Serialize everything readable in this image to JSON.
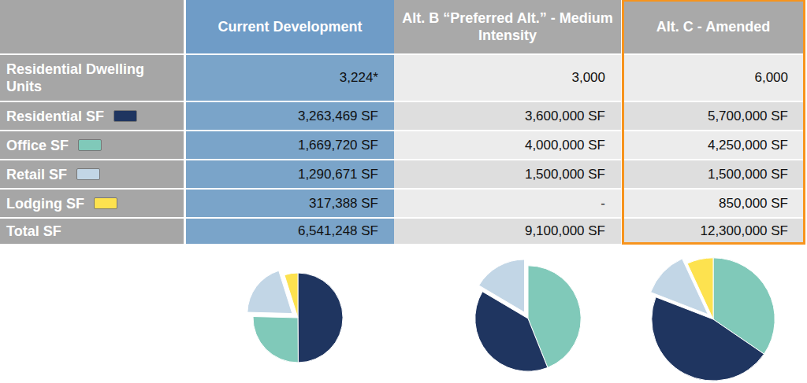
{
  "table": {
    "columns": [
      "Current Development",
      "Alt. B “Preferred Alt.” - Medium Intensity",
      "Alt. C - Amended"
    ],
    "rows": [
      {
        "label": "Residential Dwelling Units",
        "values": [
          "3,224*",
          "3,000",
          "6,000"
        ]
      },
      {
        "label": "Residential SF",
        "color": "#1f3560",
        "values": [
          "3,263,469 SF",
          "3,600,000 SF",
          "5,700,000 SF"
        ]
      },
      {
        "label": "Office SF",
        "color": "#80c9b9",
        "values": [
          "1,669,720 SF",
          "4,000,000 SF",
          "4,250,000 SF"
        ]
      },
      {
        "label": "Retail SF",
        "color": "#c2d6e6",
        "values": [
          "1,290,671 SF",
          "1,500,000 SF",
          "1,500,000 SF"
        ]
      },
      {
        "label": "Lodging SF",
        "color": "#fde24f",
        "values": [
          "317,388 SF",
          "-",
          "850,000 SF"
        ]
      },
      {
        "label": "Total SF",
        "values": [
          "6,541,248 SF",
          "9,100,000 SF",
          "12,300,000 SF"
        ]
      }
    ]
  },
  "chart_data": [
    {
      "type": "pie",
      "categories": [
        "Residential SF",
        "Office SF",
        "Retail SF",
        "Lodging SF"
      ],
      "values": [
        3263469,
        1669720,
        1290671,
        317388
      ],
      "colors": [
        "#1f3560",
        "#80c9b9",
        "#c2d6e6",
        "#fde24f"
      ]
    },
    {
      "type": "pie",
      "categories": [
        "Office SF",
        "Residential SF",
        "Retail SF"
      ],
      "values": [
        4000000,
        3600000,
        1500000
      ],
      "colors": [
        "#80c9b9",
        "#1f3560",
        "#c2d6e6"
      ]
    },
    {
      "type": "pie",
      "categories": [
        "Office SF",
        "Residential SF",
        "Retail SF",
        "Lodging SF"
      ],
      "values": [
        4250000,
        5700000,
        1500000,
        850000
      ],
      "colors": [
        "#80c9b9",
        "#1f3560",
        "#c2d6e6",
        "#fde24f"
      ]
    }
  ]
}
